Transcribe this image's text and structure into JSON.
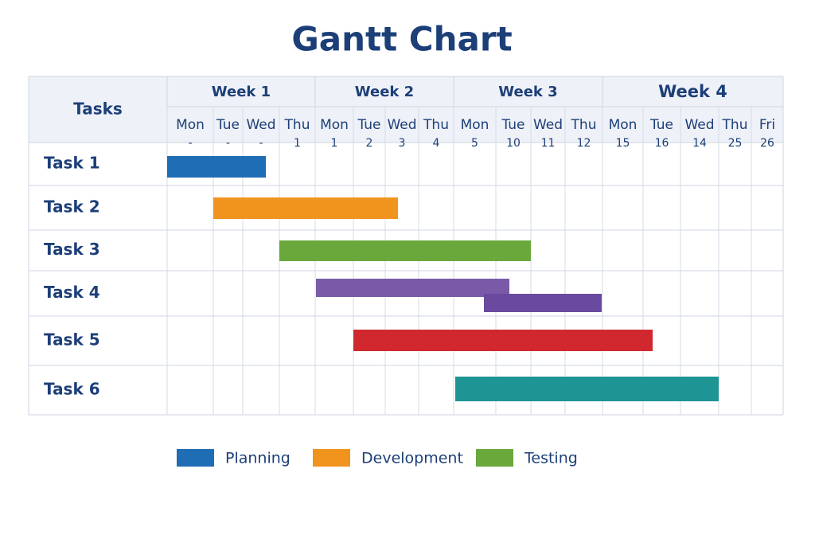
{
  "title": "Gantt Chart",
  "header": "Tasks",
  "weeks": [
    {
      "label": "Week 1",
      "days": [
        {
          "day": "Mon",
          "date": "-"
        },
        {
          "day": "Tue",
          "date": "-"
        },
        {
          "day": "Wed",
          "date": "-"
        },
        {
          "day": "Thu",
          "date": "1"
        }
      ]
    },
    {
      "label": "Week 2",
      "days": [
        {
          "day": "Mon",
          "date": "1"
        },
        {
          "day": "Tue",
          "date": "2"
        },
        {
          "day": "Wed",
          "date": "3"
        },
        {
          "day": "Thu",
          "date": "4"
        }
      ]
    },
    {
      "label": "Week 3",
      "days": [
        {
          "day": "Mon",
          "date": "5"
        },
        {
          "day": "Tue",
          "date": "10"
        },
        {
          "day": "Wed",
          "date": "11"
        },
        {
          "day": "Thu",
          "date": "12"
        }
      ]
    },
    {
      "label": "Week 4",
      "days": [
        {
          "day": "Mon",
          "date": "15"
        },
        {
          "day": "Tue",
          "date": "16"
        },
        {
          "day": "Wed",
          "date": "14"
        },
        {
          "day": "Thu",
          "date": "25"
        },
        {
          "day": "Fri",
          "date": "26"
        }
      ]
    }
  ],
  "tasks": [
    "Task 1",
    "Task 2",
    "Task 3",
    "Task 4",
    "Task 5",
    "Task 6"
  ],
  "legend": [
    {
      "label": "Planning",
      "color": "#1f6db5"
    },
    {
      "label": "Development",
      "color": "#f0941e"
    },
    {
      "label": "Testing",
      "color": "#6aa83c"
    }
  ]
}
